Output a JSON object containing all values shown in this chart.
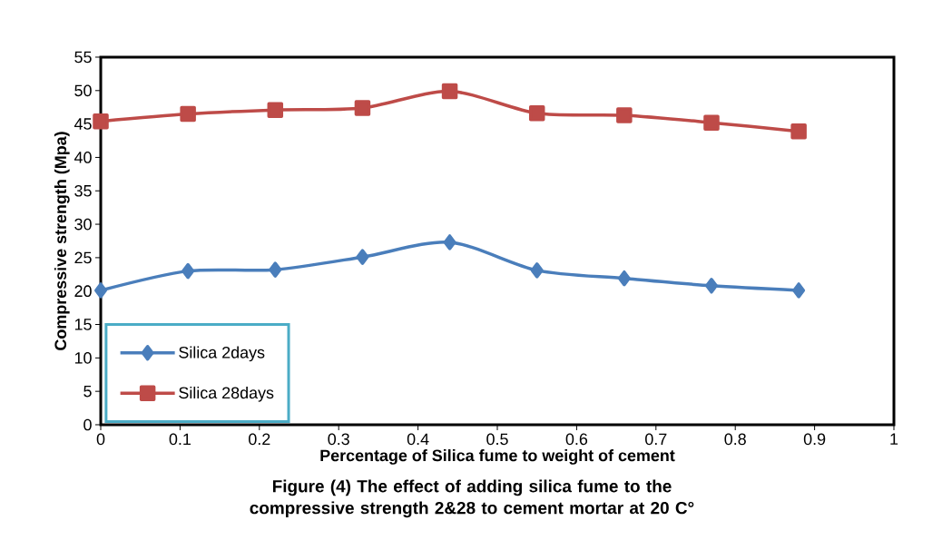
{
  "chart_data": {
    "type": "line",
    "xlabel": "Percentage of Silica fume to weight of cement",
    "ylabel": "Compressive strength (Mpa)",
    "annotations": [
      "Figure (4) The effect of adding silica fume to the  compressive strength 2&28 to cement mortar at 20 C°"
    ],
    "x": [
      0,
      0.11,
      0.22,
      0.33,
      0.44,
      0.55,
      0.66,
      0.77,
      0.88
    ],
    "series": [
      {
        "name": "Silica 2days",
        "color": "#4a7ebb",
        "marker": "diamond",
        "values": [
          20.1,
          23.0,
          23.2,
          25.1,
          27.3,
          23.1,
          21.9,
          20.8,
          20.1
        ]
      },
      {
        "name": "Silica 28days",
        "color": "#be4b48",
        "marker": "square",
        "values": [
          45.4,
          46.5,
          47.1,
          47.4,
          49.9,
          46.6,
          46.3,
          45.2,
          43.9
        ]
      }
    ],
    "xlim": [
      0,
      1
    ],
    "xticks": [
      0,
      0.1,
      0.2,
      0.3,
      0.4,
      0.5,
      0.6,
      0.7,
      0.8,
      0.9,
      1
    ],
    "ylim": [
      0,
      55
    ],
    "yticks": [
      0,
      5,
      10,
      15,
      20,
      25,
      30,
      35,
      40,
      45,
      50,
      55
    ],
    "grid": false,
    "legend": "bottom left"
  }
}
